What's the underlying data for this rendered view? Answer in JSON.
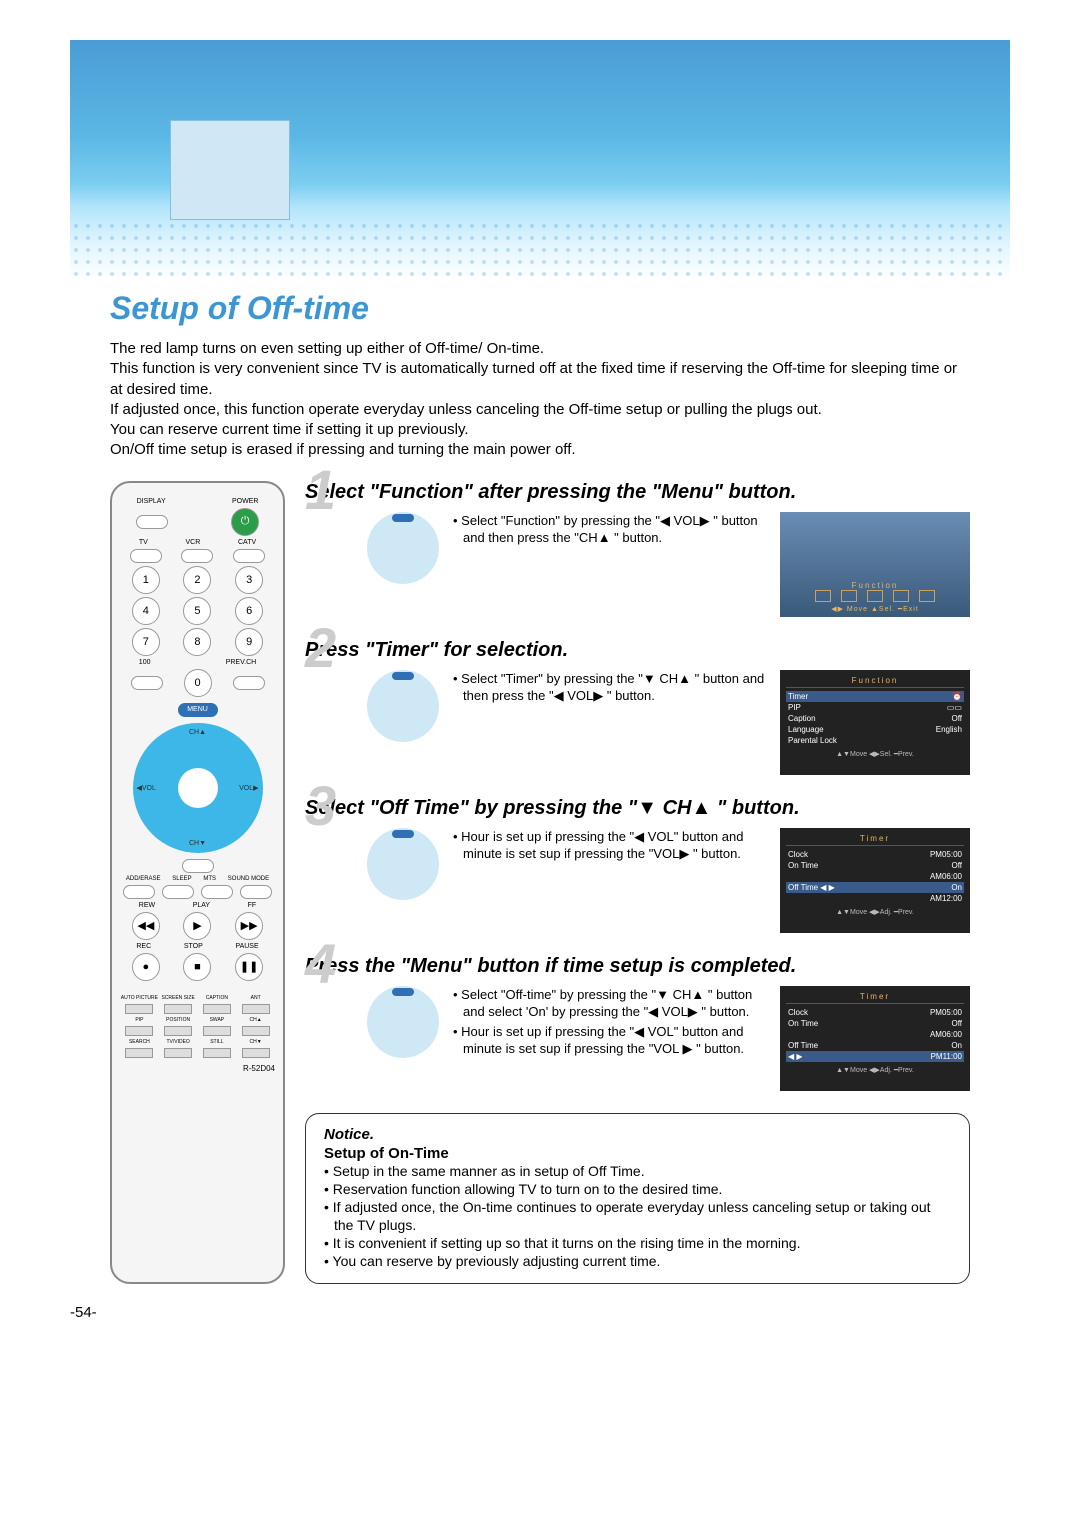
{
  "title": "Setup of Off-time",
  "intro_lines": [
    "The red lamp turns on even setting up either of Off-time/ On-time.",
    "This function is very convenient since TV is automatically turned off at the fixed time if reserving the Off-time for sleeping time or at desired time.",
    "If adjusted once, this function operate everyday unless canceling the Off-time setup or pulling the plugs out.",
    "You can reserve current time if setting it up previously.",
    "On/Off time setup is erased if pressing and turning the main power off."
  ],
  "remote": {
    "top_labels": [
      "DISPLAY",
      "",
      "POWER"
    ],
    "mode_labels": [
      "TV",
      "VCR",
      "CATV"
    ],
    "digits": [
      "1",
      "2",
      "3",
      "4",
      "5",
      "6",
      "7",
      "8",
      "9",
      "0"
    ],
    "below_digits": [
      "100",
      "",
      "PREV.CH"
    ],
    "menu_label": "MENU",
    "dpad": {
      "up": "CH▲",
      "down": "CH▼",
      "left": "◀VOL",
      "right": "VOL▶"
    },
    "mid_labels": [
      "ADD/ERASE",
      "SLEEP",
      "MTS",
      "SOUND MODE"
    ],
    "transport": [
      "REW",
      "PLAY",
      "FF",
      "REC",
      "STOP",
      "PAUSE"
    ],
    "bot_rows": [
      [
        "AUTO PICTURE",
        "SCREEN SIZE",
        "CAPTION",
        "ANT"
      ],
      [
        "PIP",
        "POSITION",
        "SWAP",
        "CH▲"
      ],
      [
        "SEARCH",
        "TV/VIDEO",
        "STILL",
        "CH▼"
      ]
    ],
    "model": "R-52D04"
  },
  "steps": [
    {
      "num": "1",
      "title": "Select \"Function\" after pressing the \"Menu\" button.",
      "bullets": [
        "Select \"Function\" by pressing the \"◀ VOL▶ \" button and then press the \"CH▲ \" button."
      ],
      "osd_type": "function",
      "osd": {
        "title": "Function",
        "bar": "◀▶ Move  ▲Sel.  ━Exit"
      }
    },
    {
      "num": "2",
      "title": "Press \"Timer\" for selection.",
      "bullets": [
        "Select \"Timer\" by pressing the \"▼ CH▲ \" button and then press the \"◀ VOL▶ \" button."
      ],
      "osd_type": "menu",
      "osd": {
        "title": "Function",
        "rows": [
          {
            "l": "Timer",
            "r": "⏰",
            "sel": true
          },
          {
            "l": "PIP",
            "r": "▭▭"
          },
          {
            "l": "Caption",
            "r": "Off"
          },
          {
            "l": "Language",
            "r": "English"
          },
          {
            "l": "Parental Lock",
            "r": ""
          }
        ],
        "foot": "▲▼Move  ◀▶Sel.  ━Prev."
      }
    },
    {
      "num": "3",
      "title": "Select \"Off Time\" by pressing the \"▼ CH▲ \" button.",
      "bullets": [
        "Hour is set up if pressing the \"◀ VOL\" button and minute is set sup if pressing the \"VOL▶ \" button."
      ],
      "osd_type": "menu",
      "osd": {
        "title": "Timer",
        "rows": [
          {
            "l": "Clock",
            "r": "PM05:00"
          },
          {
            "l": "On Time",
            "r": "Off"
          },
          {
            "l": "",
            "r": "AM06:00"
          },
          {
            "l": "Off Time ◀ ▶",
            "r": "On",
            "sel": true
          },
          {
            "l": "",
            "r": "AM12:00"
          }
        ],
        "foot": "▲▼Move  ◀▶Adj.  ━Prev."
      }
    },
    {
      "num": "4",
      "title": "Press the \"Menu\" button if time setup is completed.",
      "bullets": [
        "Select \"Off-time\" by pressing the \"▼ CH▲ \" button and select 'On' by pressing the \"◀ VOL▶ \" button.",
        "Hour is set up if pressing the \"◀ VOL\" button and minute is set sup if pressing the \"VOL ▶ \" button."
      ],
      "osd_type": "menu",
      "osd": {
        "title": "Timer",
        "rows": [
          {
            "l": "Clock",
            "r": "PM05:00"
          },
          {
            "l": "On Time",
            "r": "Off"
          },
          {
            "l": "",
            "r": "AM06:00"
          },
          {
            "l": "Off Time",
            "r": "On"
          },
          {
            "l": "◀ ▶",
            "r": "PM11:00",
            "sel": true
          }
        ],
        "foot": "▲▼Move  ◀▶Adj.  ━Prev."
      }
    }
  ],
  "notice": {
    "title": "Notice.",
    "subtitle": "Setup of On-Time",
    "bullets": [
      "Setup in the same manner as in setup of Off Time.",
      "Reservation function allowing TV to turn on to the desired time.",
      "If adjusted once, the On-time continues to operate everyday unless canceling setup or taking out the TV plugs.",
      "It is convenient if setting up so that it turns on the rising time in the morning.",
      "You can reserve by previously adjusting current time."
    ]
  },
  "page_number": "-54-"
}
